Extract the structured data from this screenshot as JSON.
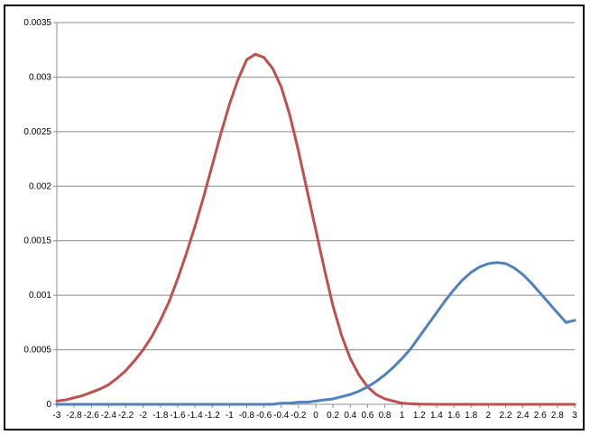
{
  "chart_data": {
    "type": "line",
    "title": "",
    "xlabel": "",
    "ylabel": "",
    "x": [
      -3,
      -2.9,
      -2.8,
      -2.7,
      -2.6,
      -2.5,
      -2.4,
      -2.3,
      -2.2,
      -2.1,
      -2,
      -1.9,
      -1.8,
      -1.7,
      -1.6,
      -1.5,
      -1.4,
      -1.3,
      -1.2,
      -1.1,
      -1,
      -0.9,
      -0.8,
      -0.7,
      -0.6,
      -0.5,
      -0.4,
      -0.3,
      -0.2,
      -0.1,
      0,
      0.1,
      0.2,
      0.3,
      0.4,
      0.5,
      0.6,
      0.7,
      0.8,
      0.9,
      1,
      1.1,
      1.2,
      1.3,
      1.4,
      1.5,
      1.6,
      1.7,
      1.8,
      1.9,
      2,
      2.1,
      2.2,
      2.3,
      2.4,
      2.5,
      2.6,
      2.7,
      2.8,
      2.9,
      3
    ],
    "x_tick_labels": [
      "-3",
      "-2.8",
      "-2.6",
      "-2.4",
      "-2.2",
      "-2",
      "-1.8",
      "-1.6",
      "-1.4",
      "-1.2",
      "-1",
      "-0.8",
      "-0.6",
      "-0.4",
      "-0.2",
      "0",
      "0.2",
      "0.4",
      "0.6",
      "0.8",
      "1",
      "1.2",
      "1.4",
      "1.6",
      "1.8",
      "2",
      "2.2",
      "2.4",
      "2.6",
      "2.8",
      "3"
    ],
    "y_tick_labels": [
      "0",
      "0.0005",
      "0.001",
      "0.0015",
      "0.002",
      "0.0025",
      "0.003",
      "0.0035"
    ],
    "ylim": [
      0,
      0.0035
    ],
    "grid": "horizontal",
    "legend": "none",
    "series": [
      {
        "color": "#C0504D",
        "values": [
          3e-05,
          4e-05,
          6e-05,
          8e-05,
          0.00011,
          0.00014,
          0.00018,
          0.00024,
          0.00031,
          0.0004,
          0.0005,
          0.00062,
          0.00077,
          0.00094,
          0.00115,
          0.00138,
          0.00163,
          0.0019,
          0.00219,
          0.00248,
          0.00275,
          0.00298,
          0.00316,
          0.00321,
          0.00318,
          0.00308,
          0.00291,
          0.00265,
          0.00232,
          0.00196,
          0.0016,
          0.00124,
          0.0009,
          0.00063,
          0.00042,
          0.00027,
          0.00016,
          9e-05,
          5e-05,
          3e-05,
          1e-05,
          5e-06,
          2e-06,
          1e-06,
          0,
          0,
          0,
          0,
          0,
          0,
          0,
          0,
          0,
          0,
          0,
          0,
          0,
          0,
          0,
          0,
          0
        ]
      },
      {
        "color": "#4F81BD",
        "values": [
          0,
          0,
          0,
          0,
          0,
          0,
          0,
          0,
          0,
          0,
          0,
          0,
          0,
          0,
          0,
          0,
          0,
          0,
          0,
          0,
          0,
          0,
          0,
          0,
          0,
          0,
          1e-05,
          1e-05,
          2e-05,
          2e-05,
          3e-05,
          4e-05,
          5e-05,
          7e-05,
          9e-05,
          0.00012,
          0.00016,
          0.00021,
          0.00027,
          0.00034,
          0.00042,
          0.00051,
          0.00062,
          0.00073,
          0.00084,
          0.00095,
          0.00105,
          0.00114,
          0.00121,
          0.00126,
          0.00129,
          0.0013,
          0.00129,
          0.00125,
          0.00119,
          0.00111,
          0.00102,
          0.00093,
          0.00084,
          0.00075,
          0.00077
        ]
      }
    ]
  }
}
